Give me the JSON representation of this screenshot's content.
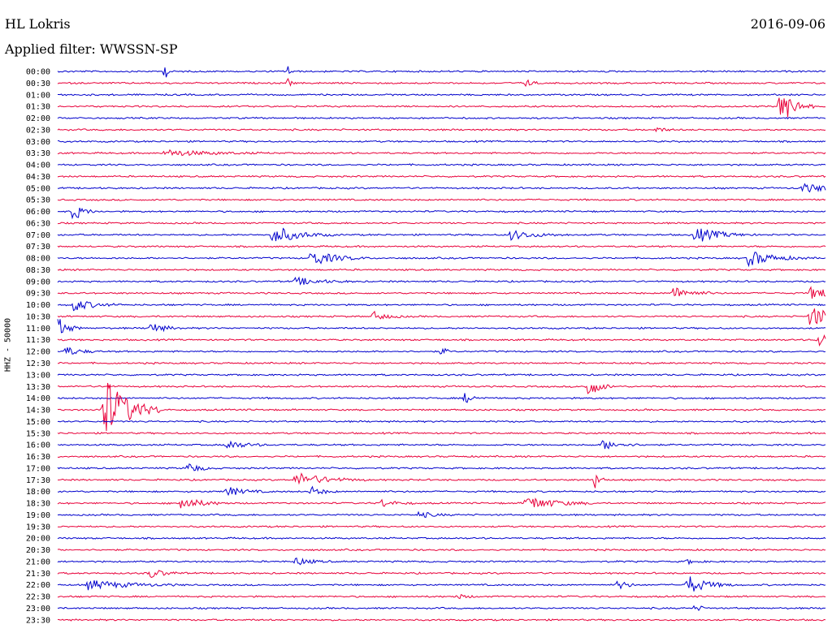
{
  "header": {
    "station": "HL Lokris",
    "date": "2016-09-06",
    "filter": "Applied filter: WWSSN-SP"
  },
  "chart_data": {
    "type": "line",
    "title": "HL Lokris",
    "ylabel": "HHZ - 50000",
    "colors": [
      "#0000cc",
      "#e8003a"
    ],
    "tick_labels": [
      "00:00",
      "00:30",
      "01:00",
      "01:30",
      "02:00",
      "02:30",
      "03:00",
      "03:30",
      "04:00",
      "04:30",
      "05:00",
      "05:30",
      "06:00",
      "06:30",
      "07:00",
      "07:30",
      "08:00",
      "08:30",
      "09:00",
      "09:30",
      "10:00",
      "10:30",
      "11:00",
      "11:30",
      "12:00",
      "12:30",
      "13:00",
      "13:30",
      "14:00",
      "14:30",
      "15:00",
      "15:30",
      "16:00",
      "16:30",
      "17:00",
      "17:30",
      "18:00",
      "18:30",
      "19:00",
      "19:30",
      "20:00",
      "20:30",
      "21:00",
      "21:30",
      "22:00",
      "22:30",
      "23:00",
      "23:30"
    ],
    "events": [
      {
        "row": 0,
        "pos": 0.14,
        "amp": 10,
        "w": 3
      },
      {
        "row": 0,
        "pos": 0.3,
        "amp": 8,
        "w": 3
      },
      {
        "row": 1,
        "pos": 0.3,
        "amp": 5,
        "w": 4
      },
      {
        "row": 1,
        "pos": 0.61,
        "amp": 5,
        "w": 6
      },
      {
        "row": 3,
        "pos": 0.94,
        "amp": 26,
        "w": 14
      },
      {
        "row": 5,
        "pos": 0.78,
        "amp": 3,
        "w": 10
      },
      {
        "row": 7,
        "pos": 0.14,
        "amp": 4,
        "w": 45
      },
      {
        "row": 10,
        "pos": 0.97,
        "amp": 5,
        "w": 40
      },
      {
        "row": 12,
        "pos": 0.02,
        "amp": 12,
        "w": 10
      },
      {
        "row": 14,
        "pos": 0.28,
        "amp": 12,
        "w": 25
      },
      {
        "row": 14,
        "pos": 0.59,
        "amp": 6,
        "w": 25
      },
      {
        "row": 14,
        "pos": 0.83,
        "amp": 10,
        "w": 25
      },
      {
        "row": 16,
        "pos": 0.33,
        "amp": 10,
        "w": 25
      },
      {
        "row": 16,
        "pos": 0.9,
        "amp": 10,
        "w": 25
      },
      {
        "row": 18,
        "pos": 0.31,
        "amp": 5,
        "w": 25
      },
      {
        "row": 19,
        "pos": 0.8,
        "amp": 8,
        "w": 20
      },
      {
        "row": 19,
        "pos": 0.98,
        "amp": 7,
        "w": 30
      },
      {
        "row": 20,
        "pos": 0.02,
        "amp": 8,
        "w": 20
      },
      {
        "row": 21,
        "pos": 0.41,
        "amp": 6,
        "w": 15
      },
      {
        "row": 21,
        "pos": 0.98,
        "amp": 12,
        "w": 40
      },
      {
        "row": 22,
        "pos": 0.0,
        "amp": 14,
        "w": 10
      },
      {
        "row": 22,
        "pos": 0.12,
        "amp": 7,
        "w": 15
      },
      {
        "row": 23,
        "pos": 0.99,
        "amp": 8,
        "w": 20
      },
      {
        "row": 24,
        "pos": 0.01,
        "amp": 6,
        "w": 15
      },
      {
        "row": 24,
        "pos": 0.5,
        "amp": 6,
        "w": 5
      },
      {
        "row": 27,
        "pos": 0.69,
        "amp": 14,
        "w": 12
      },
      {
        "row": 28,
        "pos": 0.53,
        "amp": 6,
        "w": 10
      },
      {
        "row": 29,
        "pos": 0.06,
        "amp": 45,
        "w": 25
      },
      {
        "row": 32,
        "pos": 0.22,
        "amp": 6,
        "w": 18
      },
      {
        "row": 32,
        "pos": 0.71,
        "amp": 6,
        "w": 18
      },
      {
        "row": 34,
        "pos": 0.17,
        "amp": 7,
        "w": 12
      },
      {
        "row": 35,
        "pos": 0.31,
        "amp": 9,
        "w": 30
      },
      {
        "row": 35,
        "pos": 0.7,
        "amp": 10,
        "w": 6
      },
      {
        "row": 36,
        "pos": 0.22,
        "amp": 6,
        "w": 18
      },
      {
        "row": 36,
        "pos": 0.33,
        "amp": 6,
        "w": 12
      },
      {
        "row": 37,
        "pos": 0.16,
        "amp": 9,
        "w": 20
      },
      {
        "row": 37,
        "pos": 0.42,
        "amp": 5,
        "w": 15
      },
      {
        "row": 37,
        "pos": 0.61,
        "amp": 9,
        "w": 30
      },
      {
        "row": 38,
        "pos": 0.47,
        "amp": 4,
        "w": 15
      },
      {
        "row": 42,
        "pos": 0.31,
        "amp": 5,
        "w": 15
      },
      {
        "row": 42,
        "pos": 0.82,
        "amp": 3,
        "w": 10
      },
      {
        "row": 43,
        "pos": 0.12,
        "amp": 6,
        "w": 15
      },
      {
        "row": 44,
        "pos": 0.04,
        "amp": 6,
        "w": 40
      },
      {
        "row": 44,
        "pos": 0.73,
        "amp": 8,
        "w": 8
      },
      {
        "row": 44,
        "pos": 0.82,
        "amp": 12,
        "w": 20
      },
      {
        "row": 45,
        "pos": 0.52,
        "amp": 3,
        "w": 10
      },
      {
        "row": 46,
        "pos": 0.83,
        "amp": 4,
        "w": 8
      }
    ]
  }
}
